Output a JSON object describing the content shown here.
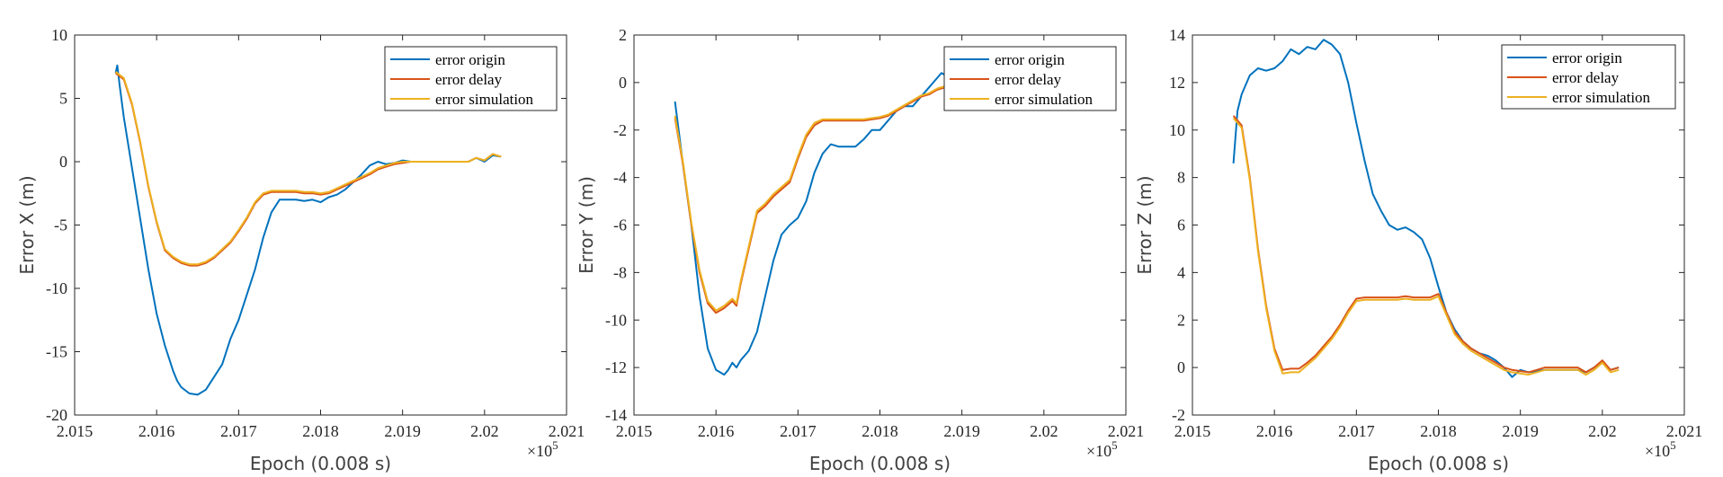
{
  "chart_data": [
    {
      "type": "line",
      "xlabel": "Epoch (0.008 s)",
      "ylabel": "Error X (m)",
      "x_multiplier_label": "×10",
      "x_multiplier_exp": "5",
      "xlim": [
        2.015,
        2.021
      ],
      "ylim": [
        -20,
        10
      ],
      "xticks": [
        "2.015",
        "2.016",
        "2.017",
        "2.018",
        "2.019",
        "2.02",
        "2.021"
      ],
      "yticks": [
        "-20",
        "-15",
        "-10",
        "-5",
        "0",
        "5",
        "10"
      ],
      "legend_position": "top-right",
      "series": [
        {
          "name": "error origin",
          "color": "#0072BD",
          "x": [
            2.0155,
            2.01552,
            2.01555,
            2.0156,
            2.0157,
            2.0158,
            2.0159,
            2.016,
            2.0161,
            2.0162,
            2.01625,
            2.0163,
            2.0164,
            2.0165,
            2.0166,
            2.0167,
            2.0168,
            2.0169,
            2.017,
            2.0171,
            2.0172,
            2.0173,
            2.0174,
            2.0175,
            2.0176,
            2.0177,
            2.0178,
            2.0179,
            2.018,
            2.0181,
            2.0182,
            2.0183,
            2.0184,
            2.0185,
            2.0186,
            2.0187,
            2.0188,
            2.0189,
            2.019,
            2.0191,
            2.0192,
            2.0193,
            2.0195,
            2.0197,
            2.0198,
            2.0199,
            2.02,
            2.0201,
            2.0202
          ],
          "y": [
            7.0,
            7.6,
            6.0,
            3.5,
            -0.5,
            -4.5,
            -8.5,
            -12.0,
            -14.5,
            -16.5,
            -17.3,
            -17.8,
            -18.3,
            -18.4,
            -18.0,
            -17.0,
            -16.0,
            -14.0,
            -12.5,
            -10.5,
            -8.5,
            -6.0,
            -4.0,
            -3.0,
            -3.0,
            -3.0,
            -3.1,
            -3.0,
            -3.2,
            -2.8,
            -2.6,
            -2.2,
            -1.6,
            -1.0,
            -0.3,
            0.0,
            -0.2,
            -0.1,
            0.1,
            0.0,
            0.0,
            0.0,
            0.0,
            0.0,
            0.0,
            0.3,
            0.0,
            0.5,
            0.4
          ]
        },
        {
          "name": "error delay",
          "color": "#D95319",
          "x": [
            2.0155,
            2.0156,
            2.0157,
            2.0158,
            2.0159,
            2.016,
            2.0161,
            2.0162,
            2.0163,
            2.0164,
            2.0165,
            2.0166,
            2.0167,
            2.0168,
            2.0169,
            2.017,
            2.0171,
            2.0172,
            2.0173,
            2.0174,
            2.0175,
            2.0176,
            2.0177,
            2.0178,
            2.0179,
            2.018,
            2.0181,
            2.0182,
            2.0183,
            2.0184,
            2.0185,
            2.0186,
            2.0187,
            2.0188,
            2.0189,
            2.019,
            2.0191,
            2.0192,
            2.0193,
            2.0195,
            2.0197,
            2.0198,
            2.0199,
            2.02,
            2.0201,
            2.0202
          ],
          "y": [
            7.0,
            6.5,
            4.5,
            1.5,
            -2.0,
            -4.8,
            -7.0,
            -7.6,
            -8.0,
            -8.2,
            -8.2,
            -8.0,
            -7.6,
            -7.0,
            -6.4,
            -5.5,
            -4.5,
            -3.3,
            -2.6,
            -2.4,
            -2.4,
            -2.4,
            -2.4,
            -2.5,
            -2.5,
            -2.6,
            -2.5,
            -2.2,
            -1.9,
            -1.6,
            -1.3,
            -1.0,
            -0.6,
            -0.4,
            -0.2,
            -0.1,
            0.0,
            0.0,
            0.0,
            0.0,
            0.0,
            0.0,
            0.3,
            0.1,
            0.6,
            0.4
          ]
        },
        {
          "name": "error simulation",
          "color": "#EDB120",
          "x": [
            2.0155,
            2.0156,
            2.0157,
            2.0158,
            2.0159,
            2.016,
            2.0161,
            2.0162,
            2.0163,
            2.0164,
            2.0165,
            2.0166,
            2.0167,
            2.0168,
            2.0169,
            2.017,
            2.0171,
            2.0172,
            2.0173,
            2.0174,
            2.0175,
            2.0176,
            2.0177,
            2.0178,
            2.0179,
            2.018,
            2.0181,
            2.0182,
            2.0183,
            2.0184,
            2.0185,
            2.0186,
            2.0187,
            2.0188,
            2.0189,
            2.019,
            2.0191,
            2.0192,
            2.0193,
            2.0195,
            2.0197,
            2.0198,
            2.0199,
            2.02,
            2.0201,
            2.0202
          ],
          "y": [
            7.1,
            6.6,
            4.6,
            1.6,
            -1.9,
            -4.7,
            -6.9,
            -7.5,
            -7.9,
            -8.1,
            -8.1,
            -7.9,
            -7.5,
            -6.9,
            -6.3,
            -5.4,
            -4.4,
            -3.2,
            -2.5,
            -2.3,
            -2.3,
            -2.3,
            -2.3,
            -2.4,
            -2.4,
            -2.5,
            -2.4,
            -2.1,
            -1.8,
            -1.5,
            -1.2,
            -0.9,
            -0.5,
            -0.3,
            -0.1,
            0.0,
            0.0,
            0.0,
            0.0,
            0.0,
            0.0,
            0.0,
            0.3,
            0.1,
            0.6,
            0.4
          ]
        }
      ]
    },
    {
      "type": "line",
      "xlabel": "Epoch (0.008 s)",
      "ylabel": "Error Y (m)",
      "x_multiplier_label": "×10",
      "x_multiplier_exp": "5",
      "xlim": [
        2.015,
        2.021
      ],
      "ylim": [
        -14,
        2
      ],
      "xticks": [
        "2.015",
        "2.016",
        "2.017",
        "2.018",
        "2.019",
        "2.02",
        "2.021"
      ],
      "yticks": [
        "-14",
        "-12",
        "-10",
        "-8",
        "-6",
        "-4",
        "-2",
        "0",
        "2"
      ],
      "legend_position": "top-right",
      "series": [
        {
          "name": "error origin",
          "color": "#0072BD",
          "x": [
            2.0155,
            2.0156,
            2.0157,
            2.0158,
            2.0159,
            2.016,
            2.0161,
            2.01615,
            2.0162,
            2.01625,
            2.0163,
            2.0164,
            2.0165,
            2.0166,
            2.0167,
            2.0168,
            2.0169,
            2.017,
            2.0171,
            2.0172,
            2.0173,
            2.0174,
            2.0175,
            2.0176,
            2.0177,
            2.0178,
            2.0179,
            2.018,
            2.0181,
            2.0182,
            2.0183,
            2.0184,
            2.0185,
            2.0186,
            2.0187,
            2.01875,
            2.0188
          ],
          "y": [
            -0.8,
            -3.5,
            -6.0,
            -9.0,
            -11.2,
            -12.1,
            -12.3,
            -12.1,
            -11.8,
            -12.0,
            -11.7,
            -11.3,
            -10.5,
            -9.0,
            -7.5,
            -6.4,
            -6.0,
            -5.7,
            -5.0,
            -3.8,
            -3.0,
            -2.6,
            -2.7,
            -2.7,
            -2.7,
            -2.4,
            -2.0,
            -2.0,
            -1.6,
            -1.2,
            -1.0,
            -1.0,
            -0.6,
            -0.2,
            0.2,
            0.4,
            0.3
          ]
        },
        {
          "name": "error delay",
          "color": "#D95319",
          "x": [
            2.0155,
            2.0156,
            2.0157,
            2.0158,
            2.0159,
            2.016,
            2.0161,
            2.0162,
            2.01625,
            2.0163,
            2.0164,
            2.0165,
            2.0166,
            2.0167,
            2.0168,
            2.0169,
            2.017,
            2.0171,
            2.0172,
            2.0173,
            2.0174,
            2.0175,
            2.0176,
            2.0177,
            2.0178,
            2.0179,
            2.018,
            2.0181,
            2.0182,
            2.0183,
            2.0184,
            2.0185,
            2.0186,
            2.0187,
            2.0188
          ],
          "y": [
            -1.5,
            -3.5,
            -6.0,
            -8.0,
            -9.3,
            -9.7,
            -9.5,
            -9.2,
            -9.4,
            -8.5,
            -7.0,
            -5.5,
            -5.2,
            -4.8,
            -4.5,
            -4.2,
            -3.2,
            -2.3,
            -1.8,
            -1.6,
            -1.6,
            -1.6,
            -1.6,
            -1.6,
            -1.6,
            -1.55,
            -1.5,
            -1.4,
            -1.2,
            -1.0,
            -0.8,
            -0.6,
            -0.5,
            -0.3,
            -0.2
          ]
        },
        {
          "name": "error simulation",
          "color": "#EDB120",
          "x": [
            2.0155,
            2.0156,
            2.0157,
            2.0158,
            2.0159,
            2.016,
            2.0161,
            2.0162,
            2.01625,
            2.0163,
            2.0164,
            2.0165,
            2.0166,
            2.0167,
            2.0168,
            2.0169,
            2.017,
            2.0171,
            2.0172,
            2.0173,
            2.0174,
            2.0175,
            2.0176,
            2.0177,
            2.0178,
            2.0179,
            2.018,
            2.0181,
            2.0182,
            2.0183,
            2.0184,
            2.0185,
            2.0186,
            2.0187,
            2.0188
          ],
          "y": [
            -1.4,
            -3.4,
            -5.9,
            -7.9,
            -9.2,
            -9.6,
            -9.4,
            -9.1,
            -9.3,
            -8.4,
            -6.9,
            -5.4,
            -5.1,
            -4.7,
            -4.4,
            -4.1,
            -3.1,
            -2.2,
            -1.7,
            -1.55,
            -1.55,
            -1.55,
            -1.55,
            -1.55,
            -1.55,
            -1.5,
            -1.45,
            -1.35,
            -1.15,
            -0.95,
            -0.75,
            -0.55,
            -0.45,
            -0.25,
            -0.15
          ]
        }
      ]
    },
    {
      "type": "line",
      "xlabel": "Epoch (0.008 s)",
      "ylabel": "Error Z (m)",
      "x_multiplier_label": "×10",
      "x_multiplier_exp": "5",
      "xlim": [
        2.015,
        2.021
      ],
      "ylim": [
        -2,
        14
      ],
      "xticks": [
        "2.015",
        "2.016",
        "2.017",
        "2.018",
        "2.019",
        "2.02",
        "2.021"
      ],
      "yticks": [
        "-2",
        "0",
        "2",
        "4",
        "6",
        "8",
        "10",
        "12",
        "14"
      ],
      "legend_position": "top-right",
      "series": [
        {
          "name": "error origin",
          "color": "#0072BD",
          "x": [
            2.0155,
            2.01555,
            2.0156,
            2.0157,
            2.0158,
            2.0159,
            2.016,
            2.0161,
            2.0162,
            2.0163,
            2.0164,
            2.0165,
            2.0166,
            2.0167,
            2.0168,
            2.0169,
            2.017,
            2.0171,
            2.0172,
            2.0173,
            2.0174,
            2.0175,
            2.0176,
            2.0177,
            2.0178,
            2.0179,
            2.018,
            2.0181,
            2.0182,
            2.0183,
            2.0184,
            2.0185,
            2.0186,
            2.0187,
            2.0188,
            2.0189,
            2.019,
            2.0191,
            2.0192,
            2.0193,
            2.0195,
            2.0197,
            2.0198,
            2.0199,
            2.02,
            2.0201,
            2.0202
          ],
          "y": [
            8.6,
            10.8,
            11.5,
            12.3,
            12.6,
            12.5,
            12.6,
            12.9,
            13.4,
            13.2,
            13.5,
            13.4,
            13.8,
            13.6,
            13.2,
            12.0,
            10.3,
            8.7,
            7.3,
            6.6,
            6.0,
            5.8,
            5.9,
            5.7,
            5.4,
            4.6,
            3.4,
            2.3,
            1.6,
            1.1,
            0.8,
            0.6,
            0.5,
            0.3,
            0.0,
            -0.4,
            -0.1,
            -0.2,
            -0.15,
            -0.1,
            -0.1,
            -0.1,
            -0.2,
            0.0,
            0.2,
            -0.1,
            0.0
          ]
        },
        {
          "name": "error delay",
          "color": "#D95319",
          "x": [
            2.0155,
            2.0156,
            2.0157,
            2.0158,
            2.0159,
            2.016,
            2.0161,
            2.0162,
            2.0163,
            2.0164,
            2.0165,
            2.0166,
            2.0167,
            2.0168,
            2.0169,
            2.017,
            2.0171,
            2.0172,
            2.0173,
            2.0174,
            2.0175,
            2.0176,
            2.0177,
            2.0178,
            2.0179,
            2.018,
            2.0181,
            2.0182,
            2.0183,
            2.0184,
            2.0185,
            2.0186,
            2.0187,
            2.0188,
            2.0189,
            2.019,
            2.0191,
            2.0192,
            2.0193,
            2.0195,
            2.0197,
            2.0198,
            2.0199,
            2.02,
            2.0201,
            2.0202
          ],
          "y": [
            10.6,
            10.2,
            8.0,
            5.0,
            2.6,
            0.8,
            -0.1,
            -0.05,
            -0.05,
            0.2,
            0.5,
            0.9,
            1.3,
            1.8,
            2.4,
            2.9,
            2.95,
            2.95,
            2.95,
            2.95,
            2.95,
            3.0,
            2.95,
            2.95,
            2.95,
            3.1,
            2.3,
            1.5,
            1.1,
            0.8,
            0.6,
            0.4,
            0.2,
            0.0,
            -0.1,
            -0.15,
            -0.2,
            -0.1,
            0.0,
            0.0,
            0.0,
            -0.2,
            0.0,
            0.3,
            -0.1,
            0.0
          ]
        },
        {
          "name": "error simulation",
          "color": "#EDB120",
          "x": [
            2.0155,
            2.0156,
            2.0157,
            2.0158,
            2.0159,
            2.016,
            2.0161,
            2.0162,
            2.0163,
            2.0164,
            2.0165,
            2.0166,
            2.0167,
            2.0168,
            2.0169,
            2.017,
            2.0171,
            2.0172,
            2.0173,
            2.0174,
            2.0175,
            2.0176,
            2.0177,
            2.0178,
            2.0179,
            2.018,
            2.0181,
            2.0182,
            2.0183,
            2.0184,
            2.0185,
            2.0186,
            2.0187,
            2.0188,
            2.0189,
            2.019,
            2.0191,
            2.0192,
            2.0193,
            2.0195,
            2.0197,
            2.0198,
            2.0199,
            2.02,
            2.0201,
            2.0202
          ],
          "y": [
            10.5,
            10.1,
            7.9,
            4.9,
            2.5,
            0.7,
            -0.25,
            -0.2,
            -0.2,
            0.1,
            0.4,
            0.8,
            1.2,
            1.7,
            2.3,
            2.8,
            2.85,
            2.85,
            2.85,
            2.85,
            2.85,
            2.9,
            2.85,
            2.85,
            2.85,
            3.0,
            2.2,
            1.4,
            1.0,
            0.7,
            0.5,
            0.3,
            0.1,
            -0.1,
            -0.2,
            -0.25,
            -0.3,
            -0.2,
            -0.1,
            -0.1,
            -0.1,
            -0.3,
            -0.1,
            0.2,
            -0.2,
            -0.1
          ]
        }
      ]
    }
  ]
}
